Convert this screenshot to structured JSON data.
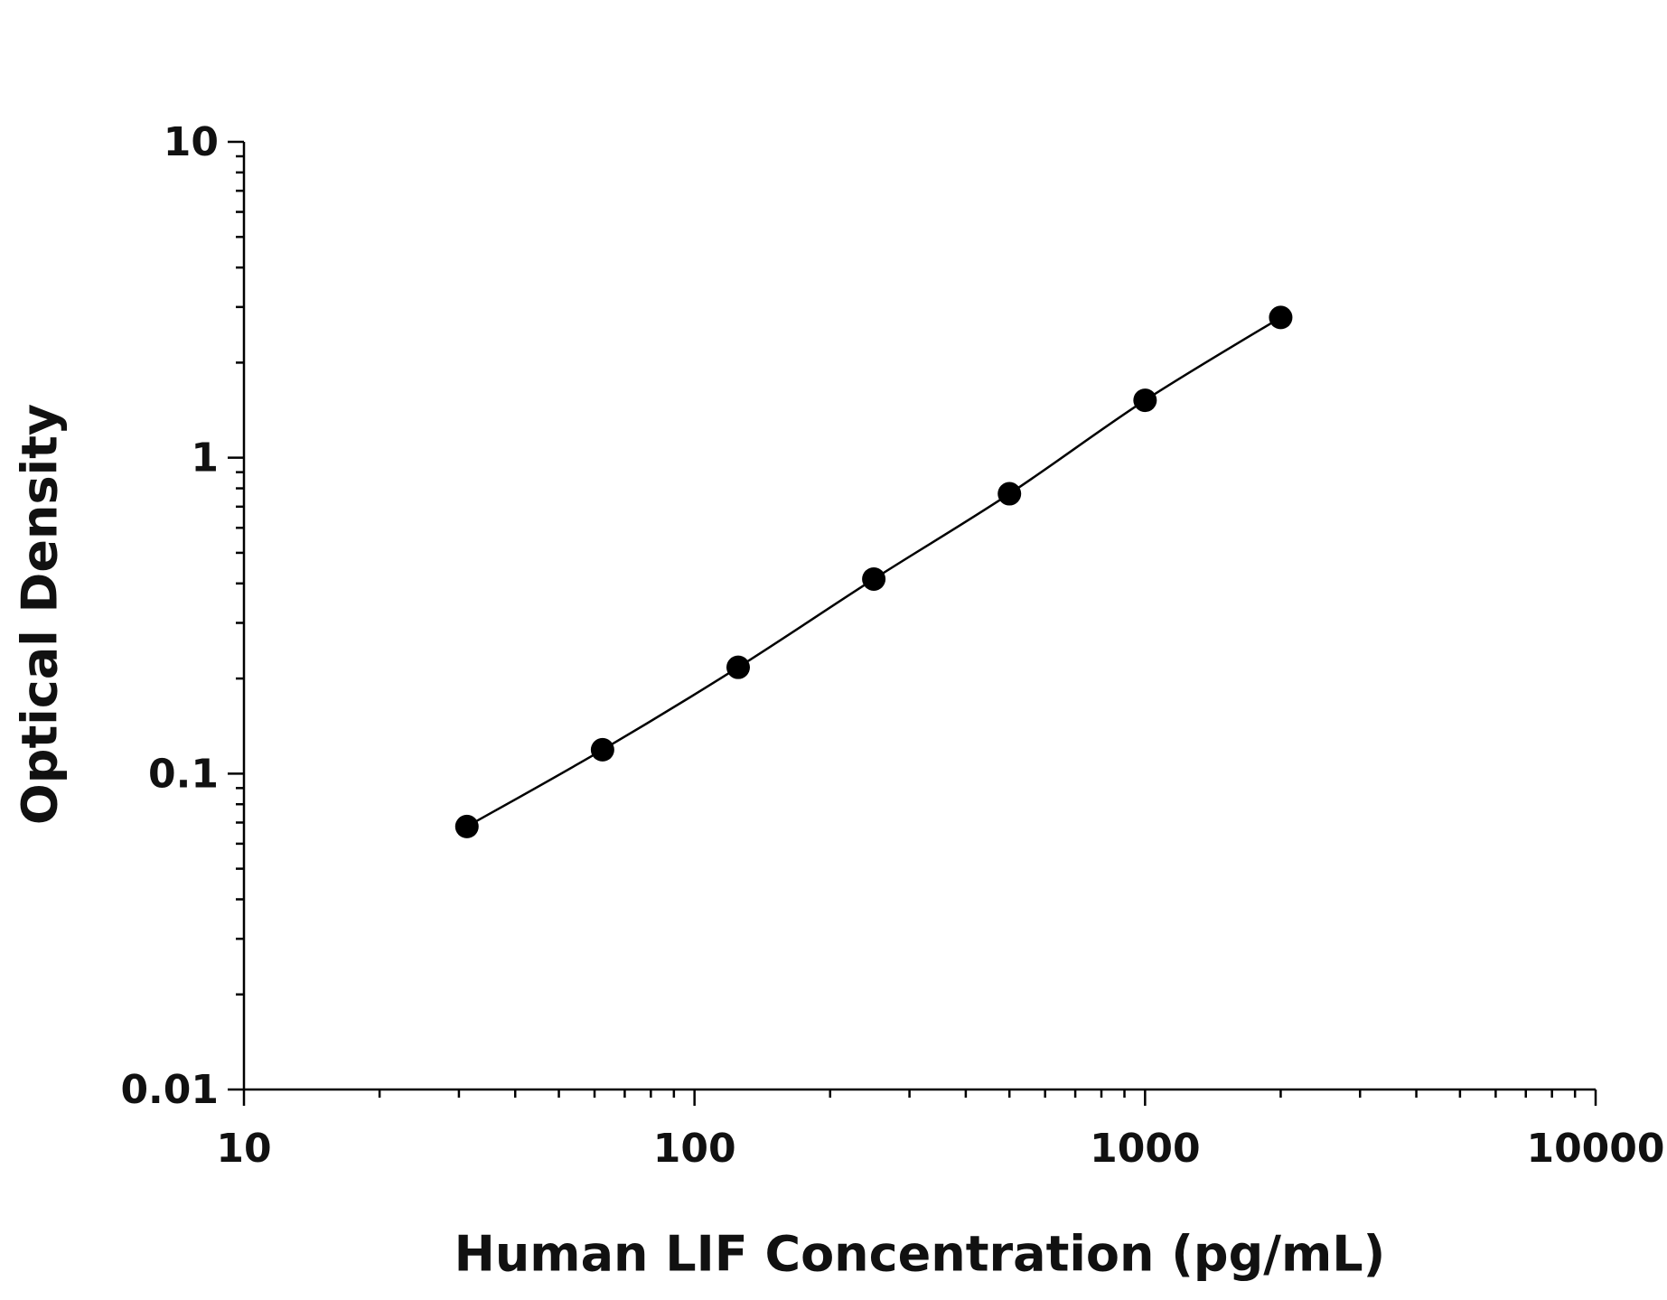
{
  "chart_data": {
    "type": "line",
    "x_label": "Human LIF Concentration (pg/mL)",
    "y_label": "Optical Density",
    "x": [
      31.25,
      62.5,
      125,
      250,
      500,
      1000,
      2000
    ],
    "series": [
      {
        "color": "#000000",
        "values": [
          0.068,
          0.119,
          0.217,
          0.413,
          0.769,
          1.52,
          2.78
        ]
      }
    ],
    "xlim": [
      10,
      10000
    ],
    "xticks": [
      10,
      100,
      1000,
      10000
    ],
    "ylim": [
      0.01,
      10
    ],
    "yticks": [
      0.01,
      0.1,
      1,
      10
    ],
    "xscale": "log",
    "yscale": "log",
    "grid": false,
    "markers": true
  }
}
